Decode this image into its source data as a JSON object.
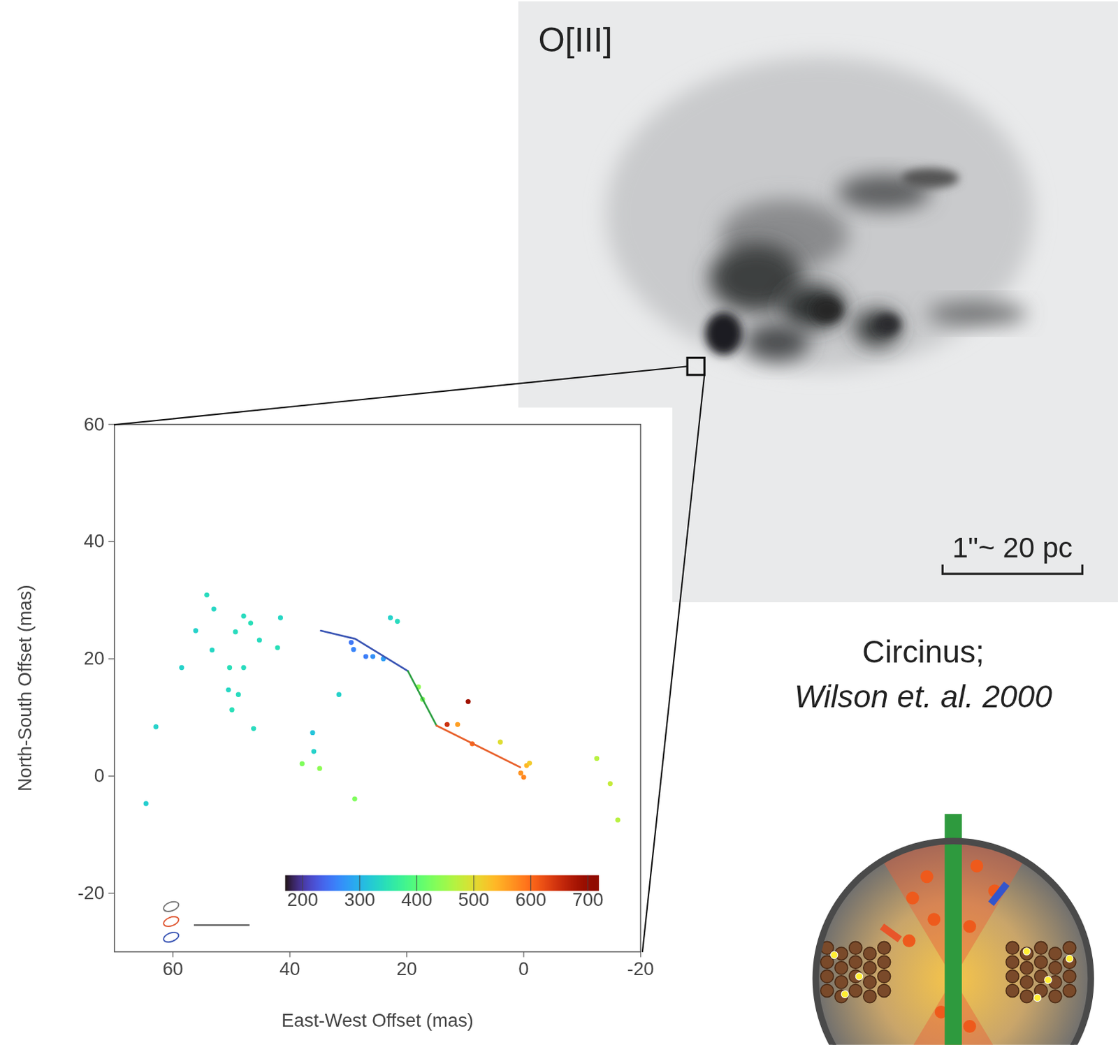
{
  "image": {
    "label": "O[III]",
    "scale_bar_label": "1\"~ 20 pc"
  },
  "caption": {
    "lines": [
      "Circinus;",
      "Wilson et. al. 2000"
    ]
  },
  "chart_data": {
    "type": "scatter",
    "x_label": "East-West Offset (mas)",
    "y_label": "North-South Offset (mas)",
    "xlim": [
      70,
      -20
    ],
    "ylim": [
      -30,
      60
    ],
    "xticks": [
      60,
      40,
      20,
      0,
      -20
    ],
    "yticks": [
      -20,
      0,
      20,
      40,
      60
    ],
    "grid": false,
    "marker": "circle",
    "x": [
      54.2,
      53.0,
      56.1,
      47.9,
      46.7,
      41.6,
      45.2,
      42.1,
      49.3,
      53.3,
      58.5,
      50.3,
      47.9,
      50.5,
      48.8,
      49.9,
      46.2,
      62.9,
      64.6,
      31.6,
      36.1,
      35.9,
      37.9,
      34.9,
      28.9,
      -12.5,
      -14.8,
      -16.1,
      -0.5,
      0.5,
      -1.0,
      0.0,
      13.1,
      9.5,
      11.3,
      8.8,
      4.0,
      22.8,
      21.6,
      29.5,
      29.1,
      27.0,
      25.8,
      24.0,
      18.0,
      17.3
    ],
    "values": [
      30.9,
      28.5,
      24.8,
      27.3,
      26.1,
      27.0,
      23.2,
      21.9,
      24.6,
      21.5,
      18.5,
      18.5,
      18.5,
      14.7,
      13.9,
      11.3,
      8.1,
      8.4,
      -4.7,
      13.9,
      7.4,
      4.2,
      2.1,
      1.3,
      -3.9,
      3.0,
      -1.3,
      -7.5,
      1.8,
      0.5,
      2.2,
      -0.2,
      8.8,
      12.7,
      8.8,
      5.5,
      5.8,
      27.0,
      26.4,
      22.8,
      21.6,
      20.4,
      20.4,
      20.0,
      15.2,
      13.1
    ],
    "velocity": [
      340,
      335,
      330,
      340,
      345,
      335,
      340,
      345,
      340,
      335,
      330,
      345,
      340,
      335,
      340,
      345,
      340,
      330,
      325,
      330,
      315,
      330,
      430,
      440,
      430,
      470,
      480,
      470,
      540,
      570,
      520,
      580,
      650,
      690,
      560,
      600,
      500,
      330,
      340,
      250,
      260,
      255,
      270,
      280,
      440,
      430
    ],
    "colorbar": {
      "range": [
        170,
        720
      ],
      "ticks": [
        200,
        300,
        400,
        500,
        600,
        700
      ]
    },
    "series": [
      {
        "type": "line",
        "color": "#3a55b4",
        "x": [
          34.7,
          28.8,
          19.8
        ],
        "values": [
          24.8,
          23.4,
          17.9
        ]
      },
      {
        "type": "line",
        "color": "#2ea043",
        "x": [
          19.8,
          14.9
        ],
        "values": [
          17.9,
          8.6
        ]
      },
      {
        "type": "line",
        "color": "#e8612c",
        "x": [
          14.9,
          0.6
        ],
        "values": [
          8.6,
          1.5
        ]
      }
    ]
  }
}
